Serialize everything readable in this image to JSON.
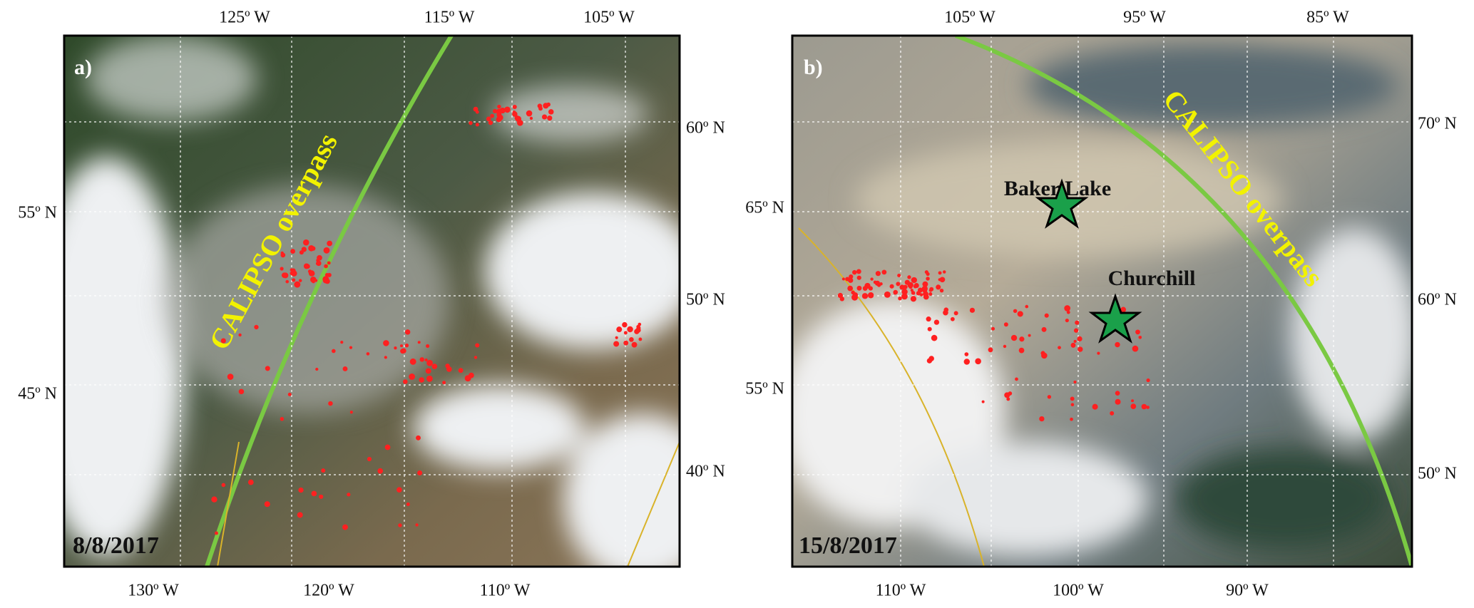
{
  "panels": [
    {
      "label": "a)",
      "date": "8/8/2017",
      "top_lon_labels": [
        "125º W",
        "115º W",
        "105º W"
      ],
      "bottom_lon_labels": [
        "130º W",
        "120º W",
        "110º W"
      ],
      "left_lat_labels": [
        "55º N",
        "45º N"
      ],
      "right_lat_labels": [
        "60º N",
        "50º N",
        "40º N"
      ],
      "track_label": "CALIPSO overpass"
    },
    {
      "label": "b)",
      "date": "15/8/2017",
      "top_lon_labels": [
        "105º W",
        "95º W",
        "85º W"
      ],
      "bottom_lon_labels": [
        "110º W",
        "100º W",
        "90º W"
      ],
      "left_lat_labels": [
        "65º N",
        "55º N"
      ],
      "right_lat_labels": [
        "70º N",
        "60º N",
        "50º N"
      ],
      "track_label": "CALIPSO overpass",
      "sites": [
        "Baker Lake",
        "Churchill"
      ]
    }
  ]
}
